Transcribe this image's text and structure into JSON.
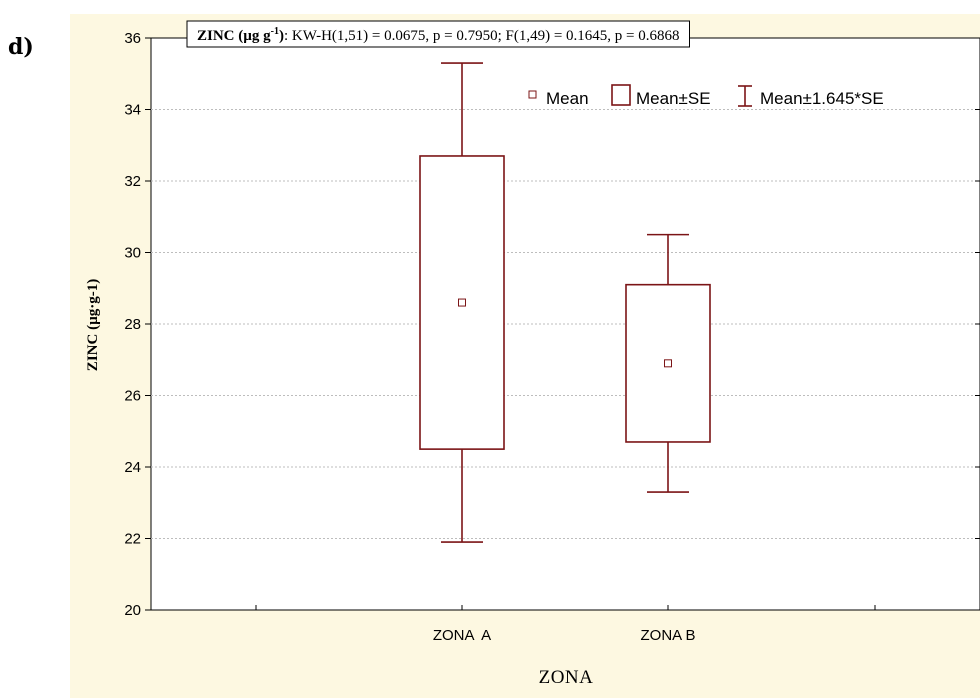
{
  "panel_label": "d)",
  "colors": {
    "series": "#7b1416",
    "grid": "#bdbdbd",
    "background": "#fdf8e1",
    "plot_area": "#ffffff"
  },
  "chart_data": {
    "type": "box",
    "title": {
      "bold_prefix": "ZINC (µg g",
      "bold_superscript": "-1",
      "bold_suffix": ")",
      "rest": ":  KW-H(1,51) = 0.0675, p = 0.7950;  F(1,49) = 0.1645, p = 0.6868"
    },
    "xlabel": "ZONA",
    "ylabel": "ZINC (µg·g-1)",
    "ylim": [
      20,
      36
    ],
    "yticks": [
      20,
      22,
      24,
      26,
      28,
      30,
      32,
      34,
      36
    ],
    "grid": "horizontal dotted",
    "legend": {
      "placement": "top-right",
      "items": [
        "Mean",
        "Mean±SE",
        "Mean±1.645*SE"
      ]
    },
    "categories": [
      "ZONA  A",
      "ZONA B"
    ],
    "series": [
      {
        "category": "ZONA  A",
        "mean": 28.6,
        "se_low": 24.5,
        "se_high": 32.7,
        "whisker_low": 21.9,
        "whisker_high": 35.3
      },
      {
        "category": "ZONA B",
        "mean": 26.9,
        "se_low": 24.7,
        "se_high": 29.1,
        "whisker_low": 23.3,
        "whisker_high": 30.5
      }
    ]
  }
}
